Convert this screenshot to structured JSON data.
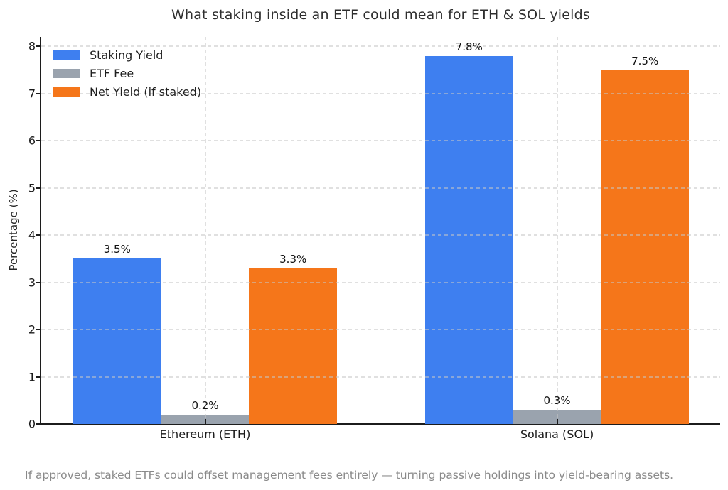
{
  "title": "What staking inside an ETF could mean for ETH & SOL yields",
  "caption": "If approved, staked ETFs could offset management fees entirely — turning passive holdings into yield-bearing assets.",
  "colors": {
    "staking_yield": "#3e7ff0",
    "etf_fee": "#9aa3ae",
    "net_yield": "#f5761a",
    "axis": "#1c1c1c",
    "grid": "#c6c6c6",
    "caption_text": "#8a8a8a",
    "background": "#ffffff"
  },
  "chart_data": {
    "type": "bar",
    "title": "What staking inside an ETF could mean for ETH & SOL yields",
    "xlabel": "",
    "ylabel": "Percentage (%)",
    "ylim": [
      0,
      8.2
    ],
    "yticks": [
      0,
      1,
      2,
      3,
      4,
      5,
      6,
      7,
      8
    ],
    "grid": true,
    "grid_style": "dashed",
    "legend_position": "upper left",
    "categories": [
      "Ethereum (ETH)",
      "Solana (SOL)"
    ],
    "series": [
      {
        "name": "Staking Yield",
        "color": "#3e7ff0",
        "values": [
          3.5,
          7.8
        ],
        "labels": [
          "3.5%",
          "7.8%"
        ]
      },
      {
        "name": "ETF Fee",
        "color": "#9aa3ae",
        "values": [
          0.2,
          0.3
        ],
        "labels": [
          "0.2%",
          "0.3%"
        ]
      },
      {
        "name": "Net Yield (if staked)",
        "color": "#f5761a",
        "values": [
          3.3,
          7.5
        ],
        "labels": [
          "3.3%",
          "7.5%"
        ]
      }
    ],
    "annotation": "If approved, staked ETFs could offset management fees entirely — turning passive holdings into yield-bearing assets."
  }
}
